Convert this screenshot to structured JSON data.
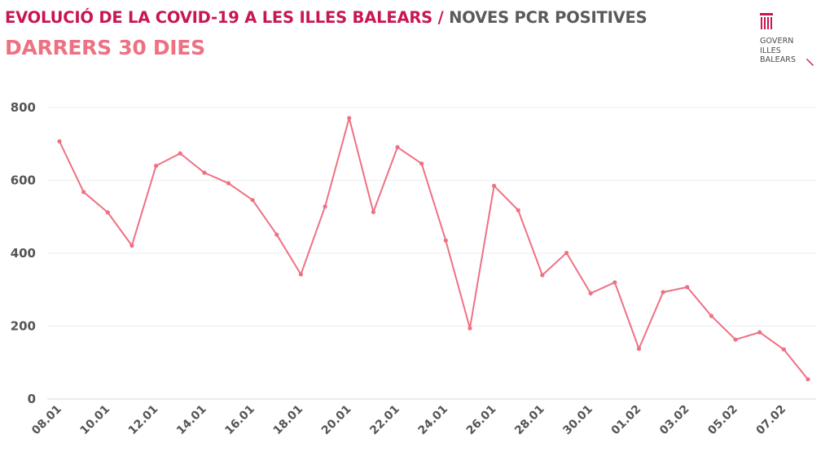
{
  "header": {
    "title_main": "EVOLUCIÓ DE LA COVID-19 A LES ILLES BALEARS",
    "title_sep": " / ",
    "title_sub": "NOVES PCR POSITIVES",
    "subtitle": "DARRERS 30 DIES"
  },
  "logo": {
    "icon": "govern-illes-balears-emblem",
    "lines": [
      "GOVERN",
      "ILLES",
      "BALEARS"
    ]
  },
  "colors": {
    "title_main": "#c8174f",
    "title_sub": "#5a5a5a",
    "subtitle": "#ee7183",
    "line": "#ee7183",
    "grid": "#eeeeee",
    "tick_text": "#555555"
  },
  "chart_data": {
    "type": "line",
    "title": "EVOLUCIÓ DE LA COVID-19 A LES ILLES BALEARS / NOVES PCR POSITIVES",
    "subtitle": "DARRERS 30 DIES",
    "xlabel": "",
    "ylabel": "",
    "ylim": [
      0,
      800
    ],
    "yticks": [
      0,
      200,
      400,
      600,
      800
    ],
    "grid": "horizontal",
    "legend": "none",
    "x": [
      "08.01",
      "09.01",
      "10.01",
      "11.01",
      "12.01",
      "13.01",
      "14.01",
      "15.01",
      "16.01",
      "17.01",
      "18.01",
      "19.01",
      "20.01",
      "21.01",
      "22.01",
      "23.01",
      "24.01",
      "25.01",
      "26.01",
      "27.01",
      "28.01",
      "29.01",
      "30.01",
      "31.01",
      "01.02",
      "02.02",
      "03.02",
      "04.02",
      "05.02",
      "06.02",
      "07.02",
      "08.02"
    ],
    "xtick_labels": [
      "08.01",
      "10.01",
      "12.01",
      "14.01",
      "16.01",
      "18.01",
      "20.01",
      "22.01",
      "24.01",
      "26.01",
      "28.01",
      "30.01",
      "01.02",
      "03.02",
      "05.02",
      "07.02"
    ],
    "series": [
      {
        "values": [
          707,
          568,
          512,
          421,
          640,
          674,
          621,
          592,
          546,
          451,
          342,
          528,
          771,
          513,
          691,
          646,
          435,
          194,
          585,
          518,
          340,
          401,
          290,
          320,
          138,
          293,
          307,
          228,
          163,
          183,
          136,
          54
        ]
      }
    ]
  }
}
